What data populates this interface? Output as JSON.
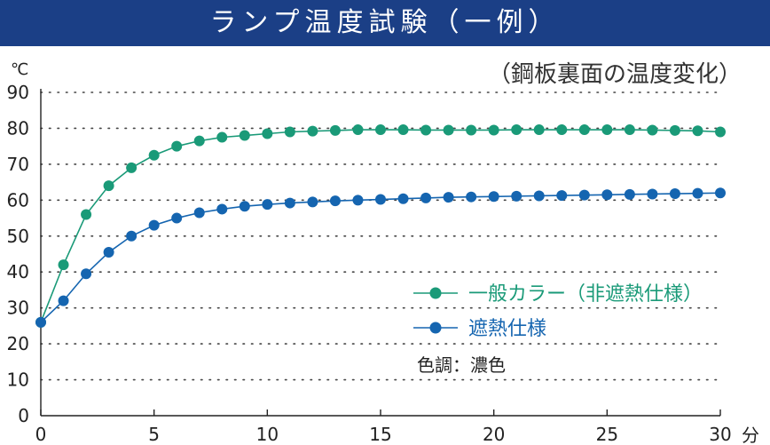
{
  "header": {
    "title": "ランプ温度試験（一例）"
  },
  "chart_data": {
    "type": "line",
    "title": "ランプ温度試験（一例）",
    "subtitle": "（鋼板裏面の温度変化）",
    "y_unit": "℃",
    "x_unit": "分",
    "xlim": [
      0,
      30
    ],
    "ylim": [
      0,
      90
    ],
    "x_ticks": [
      "0",
      "5",
      "10",
      "15",
      "20",
      "25",
      "30"
    ],
    "y_ticks": [
      "0",
      "10",
      "20",
      "30",
      "40",
      "50",
      "60",
      "70",
      "80",
      "90"
    ],
    "grid": "horizontal-dotted",
    "legend_position": "right",
    "x": [
      0,
      1,
      2,
      3,
      4,
      5,
      6,
      7,
      8,
      9,
      10,
      11,
      12,
      13,
      14,
      15,
      16,
      17,
      18,
      19,
      20,
      21,
      22,
      23,
      24,
      25,
      26,
      27,
      28,
      29,
      30
    ],
    "series": [
      {
        "name": "一般カラー（非遮熱仕様）",
        "color": "#1a9a78",
        "values": [
          26,
          42,
          56,
          64,
          69,
          72.5,
          75,
          76.5,
          77.5,
          78,
          78.5,
          79,
          79.2,
          79.4,
          79.6,
          79.6,
          79.6,
          79.5,
          79.5,
          79.5,
          79.5,
          79.6,
          79.6,
          79.6,
          79.6,
          79.6,
          79.6,
          79.5,
          79.4,
          79.3,
          79
        ]
      },
      {
        "name": "遮熱仕様",
        "color": "#1565b0",
        "values": [
          26,
          32,
          39.5,
          45.5,
          50,
          53,
          55,
          56.5,
          57.5,
          58.3,
          58.8,
          59.2,
          59.5,
          59.8,
          60,
          60.2,
          60.4,
          60.6,
          60.8,
          60.9,
          61,
          61.1,
          61.2,
          61.3,
          61.4,
          61.5,
          61.6,
          61.7,
          61.8,
          61.9,
          62
        ]
      }
    ],
    "annotation": "色調：濃色"
  }
}
